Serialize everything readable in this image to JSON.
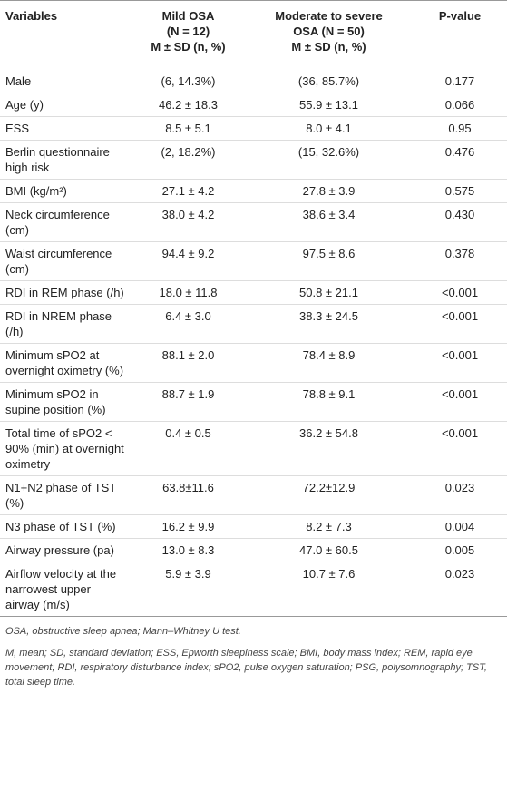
{
  "table": {
    "header": [
      [
        "Variables"
      ],
      [
        "Mild OSA",
        "(N = 12)",
        "M ± SD (n, %)"
      ],
      [
        "Moderate to severe",
        "OSA (N = 50)",
        "M ± SD (n, %)"
      ],
      [
        "P-value"
      ]
    ],
    "rows": [
      [
        "Male",
        "(6, 14.3%)",
        "(36, 85.7%)",
        "0.177"
      ],
      [
        "Age (y)",
        "46.2 ± 18.3",
        "55.9 ± 13.1",
        "0.066"
      ],
      [
        "ESS",
        "8.5 ± 5.1",
        "8.0 ± 4.1",
        "0.95"
      ],
      [
        "Berlin questionnaire high risk",
        "(2, 18.2%)",
        "(15, 32.6%)",
        "0.476"
      ],
      [
        "BMI (kg/m²)",
        "27.1 ± 4.2",
        "27.8 ± 3.9",
        "0.575"
      ],
      [
        "Neck circumference (cm)",
        "38.0 ± 4.2",
        "38.6 ± 3.4",
        "0.430"
      ],
      [
        "Waist circumference (cm)",
        "94.4 ± 9.2",
        "97.5 ± 8.6",
        "0.378"
      ],
      [
        "RDI in REM phase (/h)",
        "18.0 ± 11.8",
        "50.8 ± 21.1",
        "<0.001"
      ],
      [
        "RDI in NREM phase (/h)",
        "6.4 ± 3.0",
        "38.3 ± 24.5",
        "<0.001"
      ],
      [
        "Minimum sPO2 at overnight oximetry (%)",
        "88.1 ± 2.0",
        "78.4 ± 8.9",
        "<0.001"
      ],
      [
        "Minimum sPO2 in supine position (%)",
        "88.7 ± 1.9",
        "78.8 ± 9.1",
        "<0.001"
      ],
      [
        "Total time of sPO2 < 90% (min) at overnight oximetry",
        "0.4 ± 0.5",
        "36.2 ± 54.8",
        "<0.001"
      ],
      [
        "N1+N2 phase of TST (%)",
        "63.8±11.6",
        "72.2±12.9",
        "0.023"
      ],
      [
        "N3 phase of TST (%)",
        "16.2 ± 9.9",
        "8.2 ± 7.3",
        "0.004"
      ],
      [
        "Airway pressure (pa)",
        "13.0 ± 8.3",
        "47.0 ± 60.5",
        "0.005"
      ],
      [
        "Airflow velocity at the narrowest upper airway (m/s)",
        "5.9 ± 3.9",
        "10.7 ± 7.6",
        "0.023"
      ]
    ]
  },
  "footnotes": [
    "OSA, obstructive sleep apnea; Mann–Whitney U test.",
    "M, mean; SD, standard deviation; ESS, Epworth sleepiness scale; BMI, body mass index; REM, rapid eye movement; RDI, respiratory disturbance index; sPO2, pulse oxygen saturation; PSG, polysomnography; TST, total sleep time."
  ]
}
